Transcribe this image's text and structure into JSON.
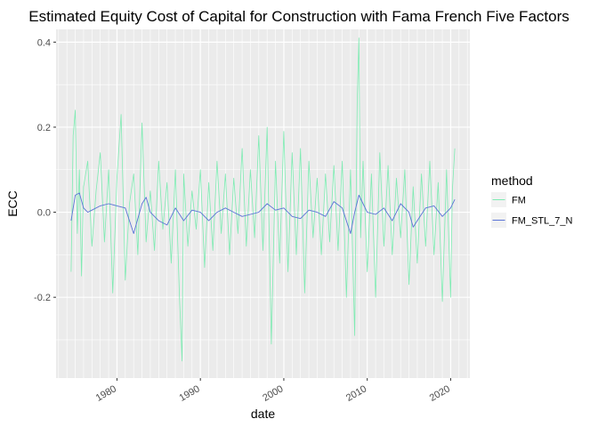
{
  "chart_data": {
    "type": "line",
    "title": "Estimated Equity Cost of Capital for Construction with Fama French Five Factors",
    "xlabel": "date",
    "ylabel": "ECC",
    "xlim": [
      1972.7,
      2022.3
    ],
    "ylim": [
      -0.39,
      0.43
    ],
    "x_ticks": [
      1980,
      1990,
      2000,
      2010,
      2020
    ],
    "x_tick_labels": [
      "1980",
      "1990",
      "2000",
      "2010",
      "2020"
    ],
    "y_ticks": [
      -0.2,
      0.0,
      0.2,
      0.4
    ],
    "y_tick_labels": [
      "-0.2",
      "0.0",
      "0.2",
      "0.4"
    ],
    "grid": true,
    "legend": {
      "title": "method",
      "position": "right"
    },
    "series": [
      {
        "name": "FM",
        "color": "#7FEBB3",
        "x": [
          1974.5,
          1974.75,
          1975.0,
          1975.25,
          1975.5,
          1975.75,
          1976.0,
          1976.5,
          1977.0,
          1977.5,
          1978.0,
          1978.5,
          1979.0,
          1979.5,
          1980.0,
          1980.5,
          1981.0,
          1981.5,
          1982.0,
          1982.5,
          1983.0,
          1983.5,
          1984.0,
          1984.5,
          1985.0,
          1985.5,
          1986.0,
          1986.5,
          1987.0,
          1987.5,
          1987.8,
          1988.0,
          1988.5,
          1989.0,
          1989.5,
          1990.0,
          1990.5,
          1991.0,
          1991.5,
          1992.0,
          1992.5,
          1993.0,
          1993.5,
          1994.0,
          1994.5,
          1995.0,
          1995.5,
          1996.0,
          1996.5,
          1997.0,
          1997.5,
          1998.0,
          1998.5,
          1999.0,
          1999.5,
          2000.0,
          2000.5,
          2001.0,
          2001.5,
          2002.0,
          2002.5,
          2003.0,
          2003.5,
          2004.0,
          2004.5,
          2005.0,
          2005.5,
          2006.0,
          2006.5,
          2007.0,
          2007.5,
          2008.0,
          2008.5,
          2008.8,
          2009.0,
          2009.2,
          2009.5,
          2010.0,
          2010.5,
          2011.0,
          2011.5,
          2012.0,
          2012.5,
          2013.0,
          2013.5,
          2014.0,
          2014.5,
          2015.0,
          2015.5,
          2016.0,
          2016.5,
          2017.0,
          2017.5,
          2018.0,
          2018.5,
          2019.0,
          2019.5,
          2020.0,
          2020.2,
          2020.5
        ],
        "values": [
          -0.14,
          0.18,
          0.24,
          -0.05,
          0.1,
          -0.15,
          0.06,
          0.12,
          -0.08,
          0.05,
          0.14,
          -0.07,
          0.1,
          -0.19,
          0.08,
          0.23,
          -0.16,
          0.02,
          0.09,
          -0.1,
          0.21,
          -0.07,
          0.05,
          -0.09,
          0.12,
          -0.04,
          0.07,
          -0.12,
          0.1,
          -0.2,
          -0.35,
          0.09,
          -0.08,
          0.05,
          -0.04,
          0.1,
          -0.13,
          0.07,
          -0.09,
          0.12,
          -0.05,
          0.09,
          -0.1,
          0.08,
          -0.05,
          0.15,
          -0.08,
          0.1,
          -0.06,
          0.18,
          -0.09,
          0.2,
          -0.31,
          0.12,
          -0.12,
          0.19,
          -0.14,
          0.14,
          -0.1,
          0.15,
          -0.19,
          0.12,
          -0.06,
          0.08,
          -0.1,
          0.09,
          -0.07,
          0.11,
          -0.09,
          0.12,
          -0.2,
          0.1,
          -0.29,
          0.26,
          0.41,
          -0.06,
          0.12,
          -0.14,
          0.09,
          -0.2,
          0.14,
          -0.08,
          0.11,
          -0.1,
          0.08,
          -0.06,
          0.1,
          -0.17,
          0.06,
          -0.12,
          0.09,
          -0.08,
          0.12,
          -0.1,
          0.07,
          -0.21,
          0.1,
          -0.2,
          0.05,
          0.15
        ]
      },
      {
        "name": "FM_STL_7_N",
        "color": "#5A73D6",
        "x": [
          1974.5,
          1975.0,
          1975.5,
          1976.0,
          1976.5,
          1977.0,
          1978.0,
          1979.0,
          1980.0,
          1981.0,
          1981.5,
          1982.0,
          1983.0,
          1983.5,
          1984.0,
          1985.0,
          1986.0,
          1987.0,
          1988.0,
          1989.0,
          1990.0,
          1991.0,
          1992.0,
          1993.0,
          1994.0,
          1995.0,
          1996.0,
          1997.0,
          1998.0,
          1999.0,
          2000.0,
          2001.0,
          2002.0,
          2003.0,
          2004.0,
          2005.0,
          2006.0,
          2007.0,
          2008.0,
          2008.5,
          2009.0,
          2009.5,
          2010.0,
          2011.0,
          2012.0,
          2013.0,
          2014.0,
          2015.0,
          2015.5,
          2016.0,
          2017.0,
          2018.0,
          2019.0,
          2020.0,
          2020.5
        ],
        "values": [
          -0.02,
          0.04,
          0.045,
          0.01,
          0.0,
          0.005,
          0.015,
          0.02,
          0.015,
          0.01,
          -0.02,
          -0.05,
          0.02,
          0.035,
          0.0,
          -0.02,
          -0.03,
          0.01,
          -0.02,
          0.005,
          0.0,
          -0.02,
          0.0,
          0.01,
          0.0,
          -0.01,
          -0.005,
          0.0,
          0.02,
          0.005,
          0.01,
          -0.01,
          -0.015,
          0.005,
          0.0,
          -0.01,
          0.025,
          0.01,
          -0.05,
          0.0,
          0.04,
          0.02,
          0.0,
          -0.005,
          0.01,
          -0.02,
          0.02,
          0.0,
          -0.035,
          -0.02,
          0.01,
          0.015,
          -0.01,
          0.01,
          0.03
        ]
      }
    ]
  }
}
